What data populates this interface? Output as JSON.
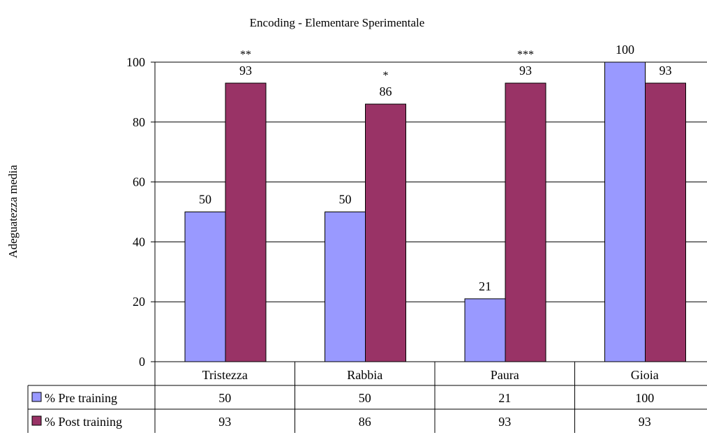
{
  "chart_data": {
    "type": "bar",
    "title": "Encoding - Elementare Sperimentale",
    "ylabel": "Adeguatezza media",
    "xlabel": "",
    "ylim": [
      0,
      100
    ],
    "yticks": [
      "0",
      "20",
      "40",
      "60",
      "80",
      "100"
    ],
    "grid": true,
    "legend": "data-table",
    "categories": [
      "Tristezza",
      "Rabbia",
      "Paura",
      "Gioia"
    ],
    "series": [
      {
        "name": "% Pre training",
        "color": "#9999ff",
        "values": [
          50,
          50,
          21,
          100
        ]
      },
      {
        "name": "% Post training",
        "color": "#993366",
        "values": [
          93,
          86,
          93,
          93
        ]
      }
    ],
    "significance": [
      "**",
      "*",
      "***",
      ""
    ]
  }
}
